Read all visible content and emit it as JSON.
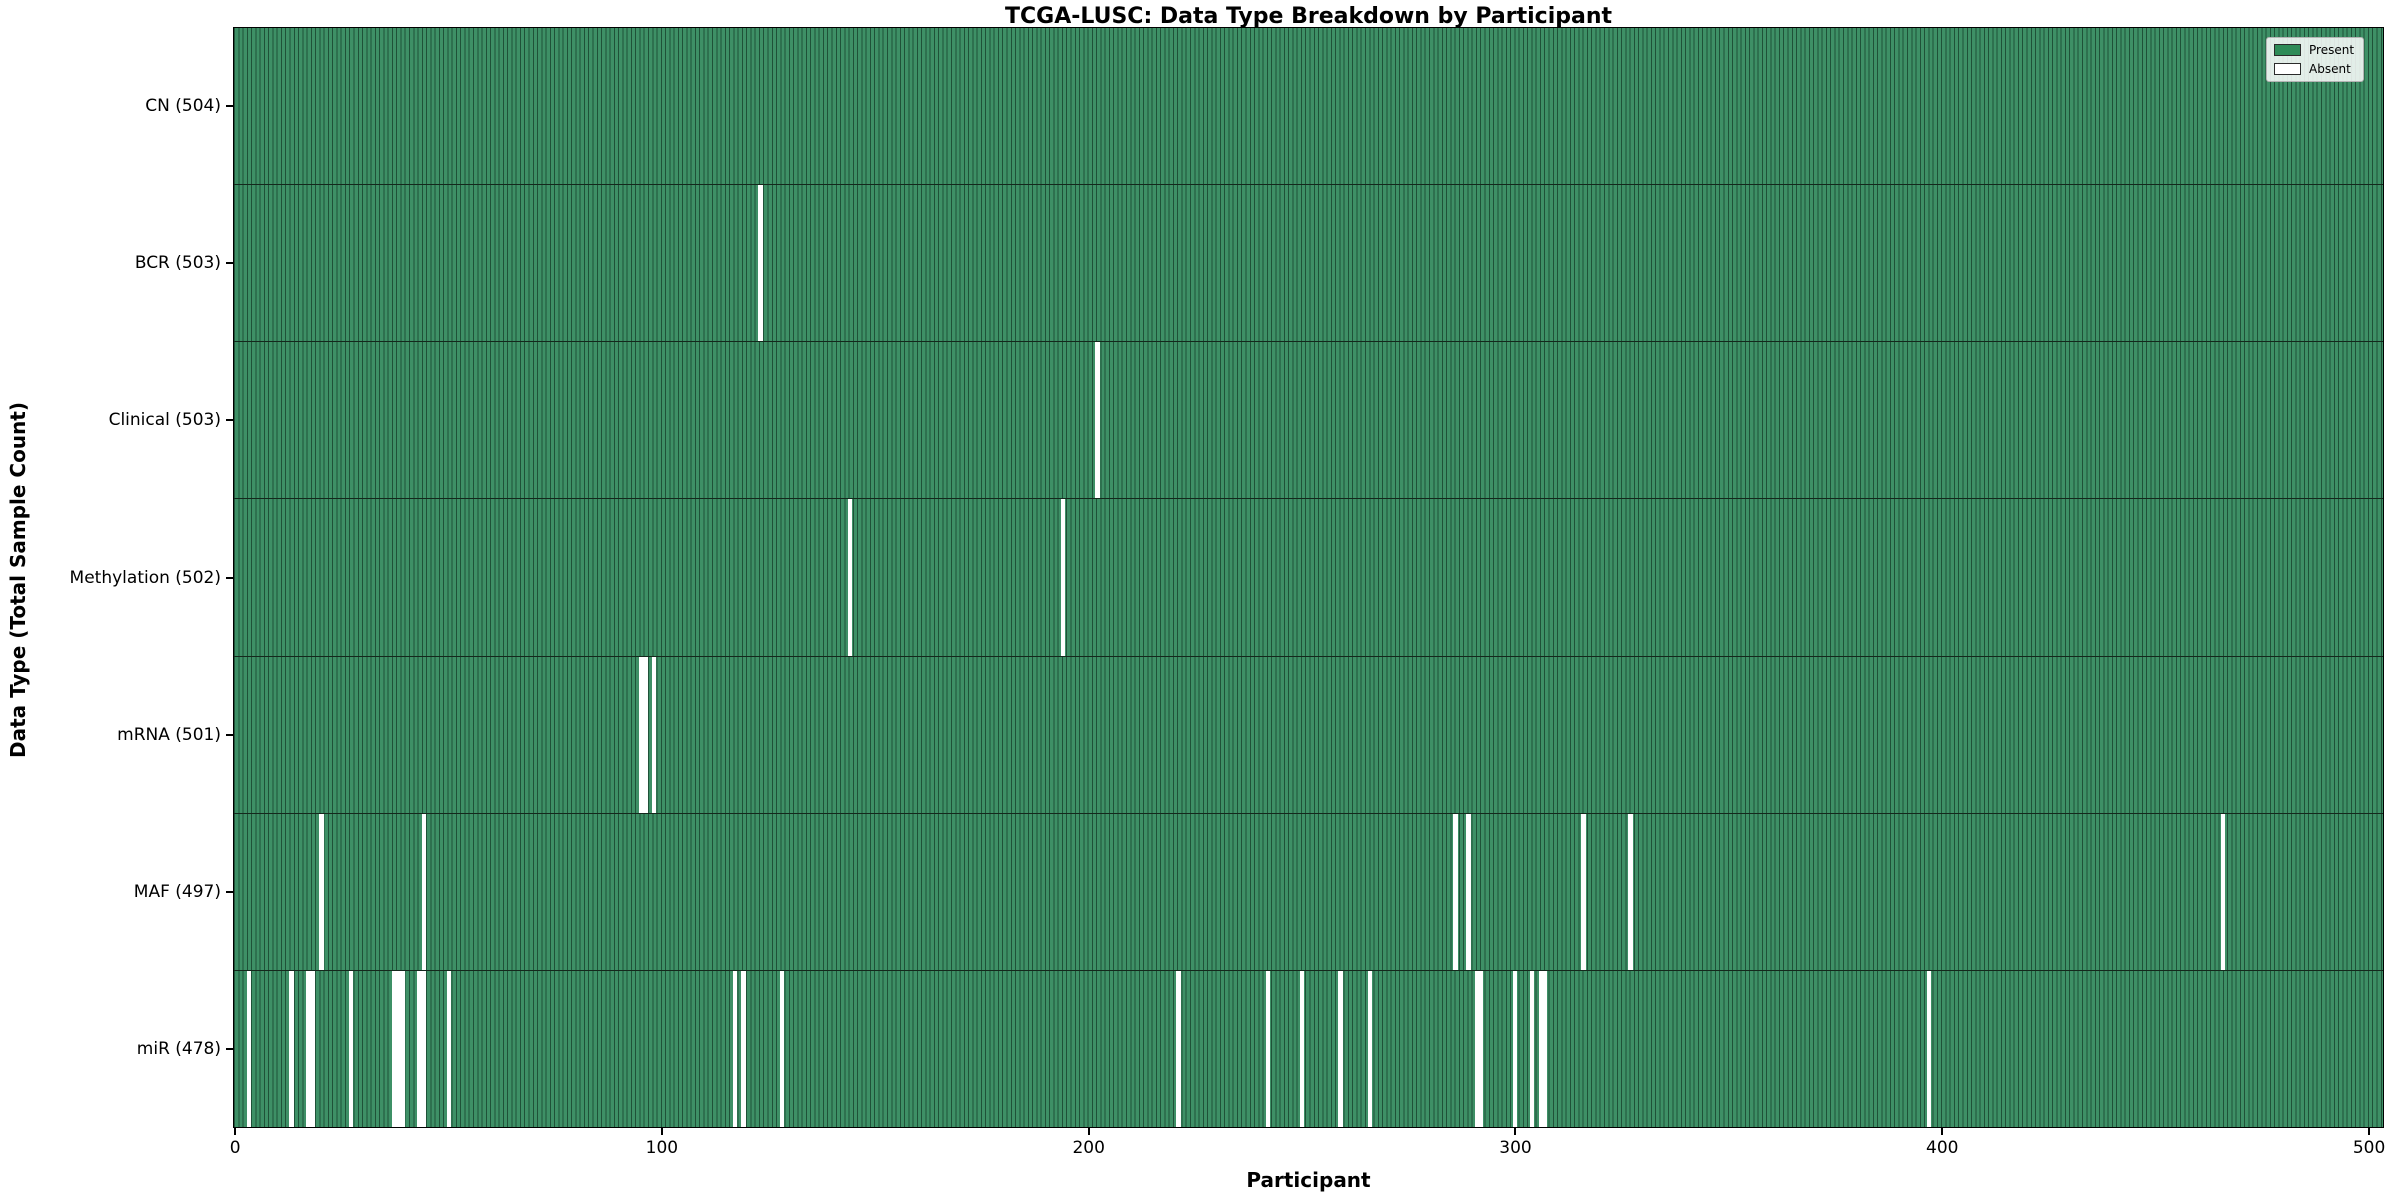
{
  "chart_data": {
    "type": "heatmap",
    "title": "TCGA-LUSC: Data Type Breakdown by Participant",
    "xlabel": "Participant",
    "ylabel": "Data Type (Total Sample Count)",
    "n_participants": 504,
    "x_ticks": [
      0,
      100,
      200,
      300,
      400,
      500
    ],
    "x_range": [
      -0.5,
      503.5
    ],
    "grid": false,
    "legend_position": "upper right",
    "legend": [
      {
        "label": "Present",
        "color": "#2E8B57"
      },
      {
        "label": "Absent",
        "color": "#FFFFFF"
      }
    ],
    "cell_colors": {
      "present": "#3E9066",
      "absent": "#FFFFFF",
      "bar_edge": "#0A2012"
    },
    "rows": [
      {
        "name": "CN",
        "label": "CN (504)",
        "total": 504,
        "absent_participants": []
      },
      {
        "name": "BCR",
        "label": "BCR (503)",
        "total": 503,
        "absent_participants": [
          123
        ]
      },
      {
        "name": "Clinical",
        "label": "Clinical (503)",
        "total": 503,
        "absent_participants": [
          202
        ]
      },
      {
        "name": "Methylation",
        "label": "Methylation (502)",
        "total": 502,
        "absent_participants": [
          144,
          194
        ]
      },
      {
        "name": "mRNA",
        "label": "mRNA (501)",
        "total": 501,
        "absent_participants": [
          95,
          96,
          98
        ]
      },
      {
        "name": "MAF",
        "label": "MAF (497)",
        "total": 497,
        "absent_participants": [
          20,
          44,
          286,
          289,
          316,
          327,
          466
        ]
      },
      {
        "name": "miR",
        "label": "miR (478)",
        "total": 478,
        "absent_participants": [
          3,
          13,
          17,
          18,
          27,
          37,
          38,
          39,
          43,
          44,
          50,
          117,
          119,
          128,
          221,
          242,
          250,
          259,
          266,
          291,
          292,
          300,
          304,
          306,
          307,
          397
        ]
      }
    ]
  }
}
